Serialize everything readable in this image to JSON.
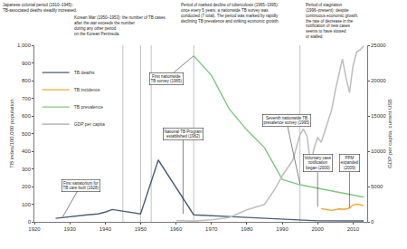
{
  "chart_data": {
    "type": "line",
    "y_label": "TB index/100,000 population",
    "y2_label": "GDP per capita, current US$",
    "xlim": [
      1920,
      2014
    ],
    "xticks": [
      1920,
      1930,
      1940,
      1950,
      1960,
      1970,
      1980,
      1990,
      2000,
      2010
    ],
    "ylim": [
      0,
      1000
    ],
    "yticks": [
      0,
      100,
      200,
      300,
      400,
      500,
      600,
      700,
      800,
      900,
      {
        "value": 1000,
        "label": "1,000"
      }
    ],
    "y2lim": [
      0,
      25000
    ],
    "y2ticks": [
      0,
      5000,
      10000,
      15000,
      20000,
      25000
    ],
    "grid": false,
    "legend": "upper left",
    "series": [
      {
        "name": "TB deaths",
        "color": "#4b5e78",
        "x": [
          1926,
          1930,
          1935,
          1938,
          1940,
          1942,
          1945,
          1950,
          1955,
          1965,
          1980,
          1990,
          2000,
          2013
        ],
        "values": [
          20,
          30,
          40,
          45,
          55,
          70,
          60,
          45,
          350,
          40,
          25,
          15,
          6,
          5
        ]
      },
      {
        "name": "TB incidence",
        "color": "#f0a830",
        "x": [
          2001,
          2002,
          2003,
          2004,
          2005,
          2006,
          2007,
          2008,
          2009,
          2010,
          2011,
          2012,
          2013
        ],
        "values": [
          75,
          73,
          68,
          65,
          70,
          73,
          72,
          72,
          78,
          96,
          100,
          98,
          90
        ]
      },
      {
        "name": "TB prevalence",
        "color": "#7dc87d",
        "x": [
          1965,
          1970,
          1975,
          1980,
          1985,
          1990,
          1995,
          2000,
          2005,
          2010,
          2013
        ],
        "values": [
          940,
          830,
          640,
          520,
          420,
          240,
          210,
          190,
          170,
          150,
          140
        ]
      },
      {
        "name": "GDP per capita",
        "color": "#c0c0c0",
        "axis": "y2",
        "x": [
          1960,
          1965,
          1970,
          1975,
          1980,
          1985,
          1988,
          1990,
          1993,
          1995,
          1996,
          1997,
          1998,
          1999,
          2000,
          2001,
          2002,
          2003,
          2004,
          2005,
          2006,
          2007,
          2008,
          2009,
          2010,
          2011,
          2012,
          2013
        ],
        "values": [
          158,
          108,
          279,
          615,
          1704,
          2457,
          4686,
          6516,
          8741,
          12333,
          13137,
          12131,
          8085,
          10409,
          11948,
          11253,
          12789,
          14209,
          15908,
          18640,
          20888,
          23061,
          20431,
          18292,
          22087,
          24080,
          24359,
          24900
        ]
      }
    ],
    "vlines": [
      1945,
      1950,
      1953,
      1965,
      1995
    ],
    "annotations": [
      {
        "text": "Japanese colonial period (1910–1945):\nTB-associated deaths steadily increased."
      },
      {
        "text": "Korean War (1950–1953): the number of TB cases\nafter the war exceeds the number\nduring any other period\non the Korean Peninsula."
      },
      {
        "text": "Period of marked decline of tuberculosis (1965–1995):\nonce every 5 years, a nationwide TB survey was\nconducted (7 total). The period was marked by rapidly\ndeclining TB prevalence and striking economic growth."
      },
      {
        "text": "Period of stagnation\n(1996–present): despite\ncontinuous economic growth,\nthe rate of decrease in the\nnotification of new cases\nseems to have slowed\nor stalled."
      }
    ],
    "notes": [
      {
        "text": "First sanatorium for\nTB care built (1928)",
        "x": 1928
      },
      {
        "text": "National TB Program\nestablished (1962)",
        "x": 1962
      },
      {
        "text": "First nationwide\nTB survey (1965)",
        "x": 1965
      },
      {
        "text": "Seventh nationwide TB\nprevalence survey (1995)",
        "x": 1995
      },
      {
        "text": "Voluntary case\nnotification\nbegan (2000)",
        "x": 2000
      },
      {
        "text": "PPM\nexpanded\n(2009)",
        "x": 2009
      }
    ]
  }
}
